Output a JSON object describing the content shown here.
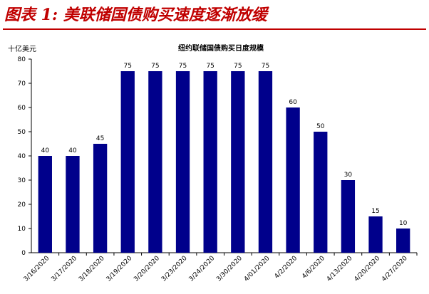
{
  "figure_title": "图表 1:  美联储国债购买速度逐渐放缓",
  "unit_label": "十亿美元",
  "accent_color": "#c00000",
  "bar_color": "#00008b",
  "chart_data": {
    "type": "bar",
    "title": "纽约联储国债购买日度规模",
    "ylabel": "十亿美元",
    "xlabel": "",
    "ylim": [
      0,
      80
    ],
    "yticks": [
      0,
      10,
      20,
      30,
      40,
      50,
      60,
      70,
      80
    ],
    "grid": false,
    "categories": [
      "3/16/2020",
      "3/17/2020",
      "3/18/2020",
      "3/19/2020",
      "3/20/2020",
      "3/23/2020",
      "3/24/2020",
      "3/30/2020",
      "4/01/2020",
      "4/2/2020",
      "4/6/2020",
      "4/13/2020",
      "4/20/2020",
      "4/27/2020"
    ],
    "values": [
      40,
      40,
      45,
      75,
      75,
      75,
      75,
      75,
      75,
      60,
      50,
      30,
      15,
      10
    ]
  }
}
